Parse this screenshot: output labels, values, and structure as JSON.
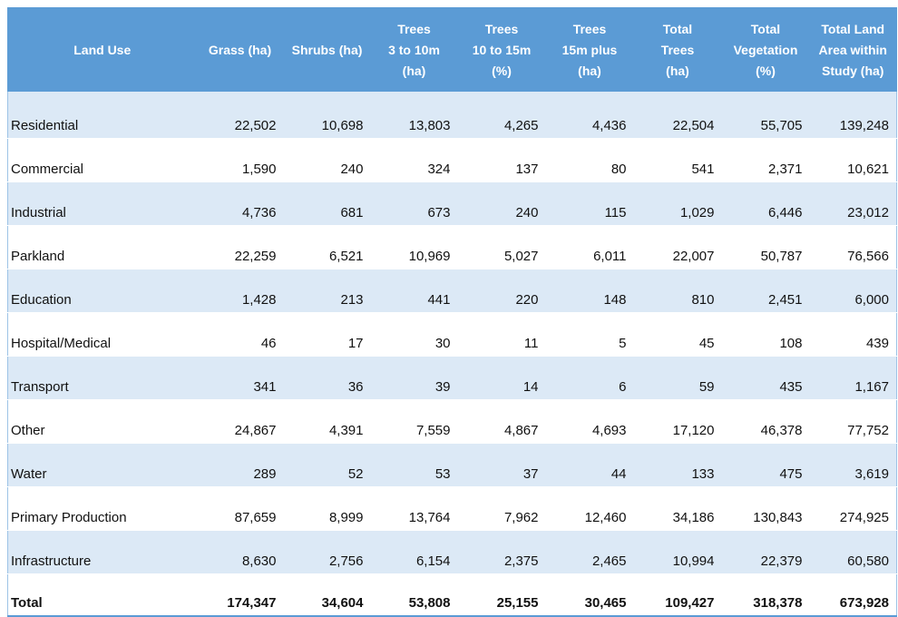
{
  "table": {
    "headers": [
      "Land Use",
      "Grass (ha)",
      "Shrubs (ha)",
      "Trees\n3 to 10m\n(ha)",
      "Trees\n10 to 15m\n(%)",
      "Trees\n15m plus\n(ha)",
      "Total\nTrees\n(ha)",
      "Total\nVegetation\n(%)",
      "Total Land\nArea within\nStudy (ha)"
    ],
    "rows": [
      [
        "Residential",
        "22,502",
        "10,698",
        "13,803",
        "4,265",
        "4,436",
        "22,504",
        "55,705",
        "139,248"
      ],
      [
        "Commercial",
        "1,590",
        "240",
        "324",
        "137",
        "80",
        "541",
        "2,371",
        "10,621"
      ],
      [
        "Industrial",
        "4,736",
        "681",
        "673",
        "240",
        "115",
        "1,029",
        "6,446",
        "23,012"
      ],
      [
        "Parkland",
        "22,259",
        "6,521",
        "10,969",
        "5,027",
        "6,011",
        "22,007",
        "50,787",
        "76,566"
      ],
      [
        "Education",
        "1,428",
        "213",
        "441",
        "220",
        "148",
        "810",
        "2,451",
        "6,000"
      ],
      [
        "Hospital/Medical",
        "46",
        "17",
        "30",
        "11",
        "5",
        "45",
        "108",
        "439"
      ],
      [
        "Transport",
        "341",
        "36",
        "39",
        "14",
        "6",
        "59",
        "435",
        "1,167"
      ],
      [
        "Other",
        "24,867",
        "4,391",
        "7,559",
        "4,867",
        "4,693",
        "17,120",
        "46,378",
        "77,752"
      ],
      [
        "Water",
        "289",
        "52",
        "53",
        "37",
        "44",
        "133",
        "475",
        "3,619"
      ],
      [
        "Primary Production",
        "87,659",
        "8,999",
        "13,764",
        "7,962",
        "12,460",
        "34,186",
        "130,843",
        "274,925"
      ],
      [
        "Infrastructure",
        "8,630",
        "2,756",
        "6,154",
        "2,375",
        "2,465",
        "10,994",
        "22,379",
        "60,580"
      ]
    ],
    "total": [
      "Total",
      "174,347",
      "34,604",
      "53,808",
      "25,155",
      "30,465",
      "109,427",
      "318,378",
      "673,928"
    ]
  }
}
